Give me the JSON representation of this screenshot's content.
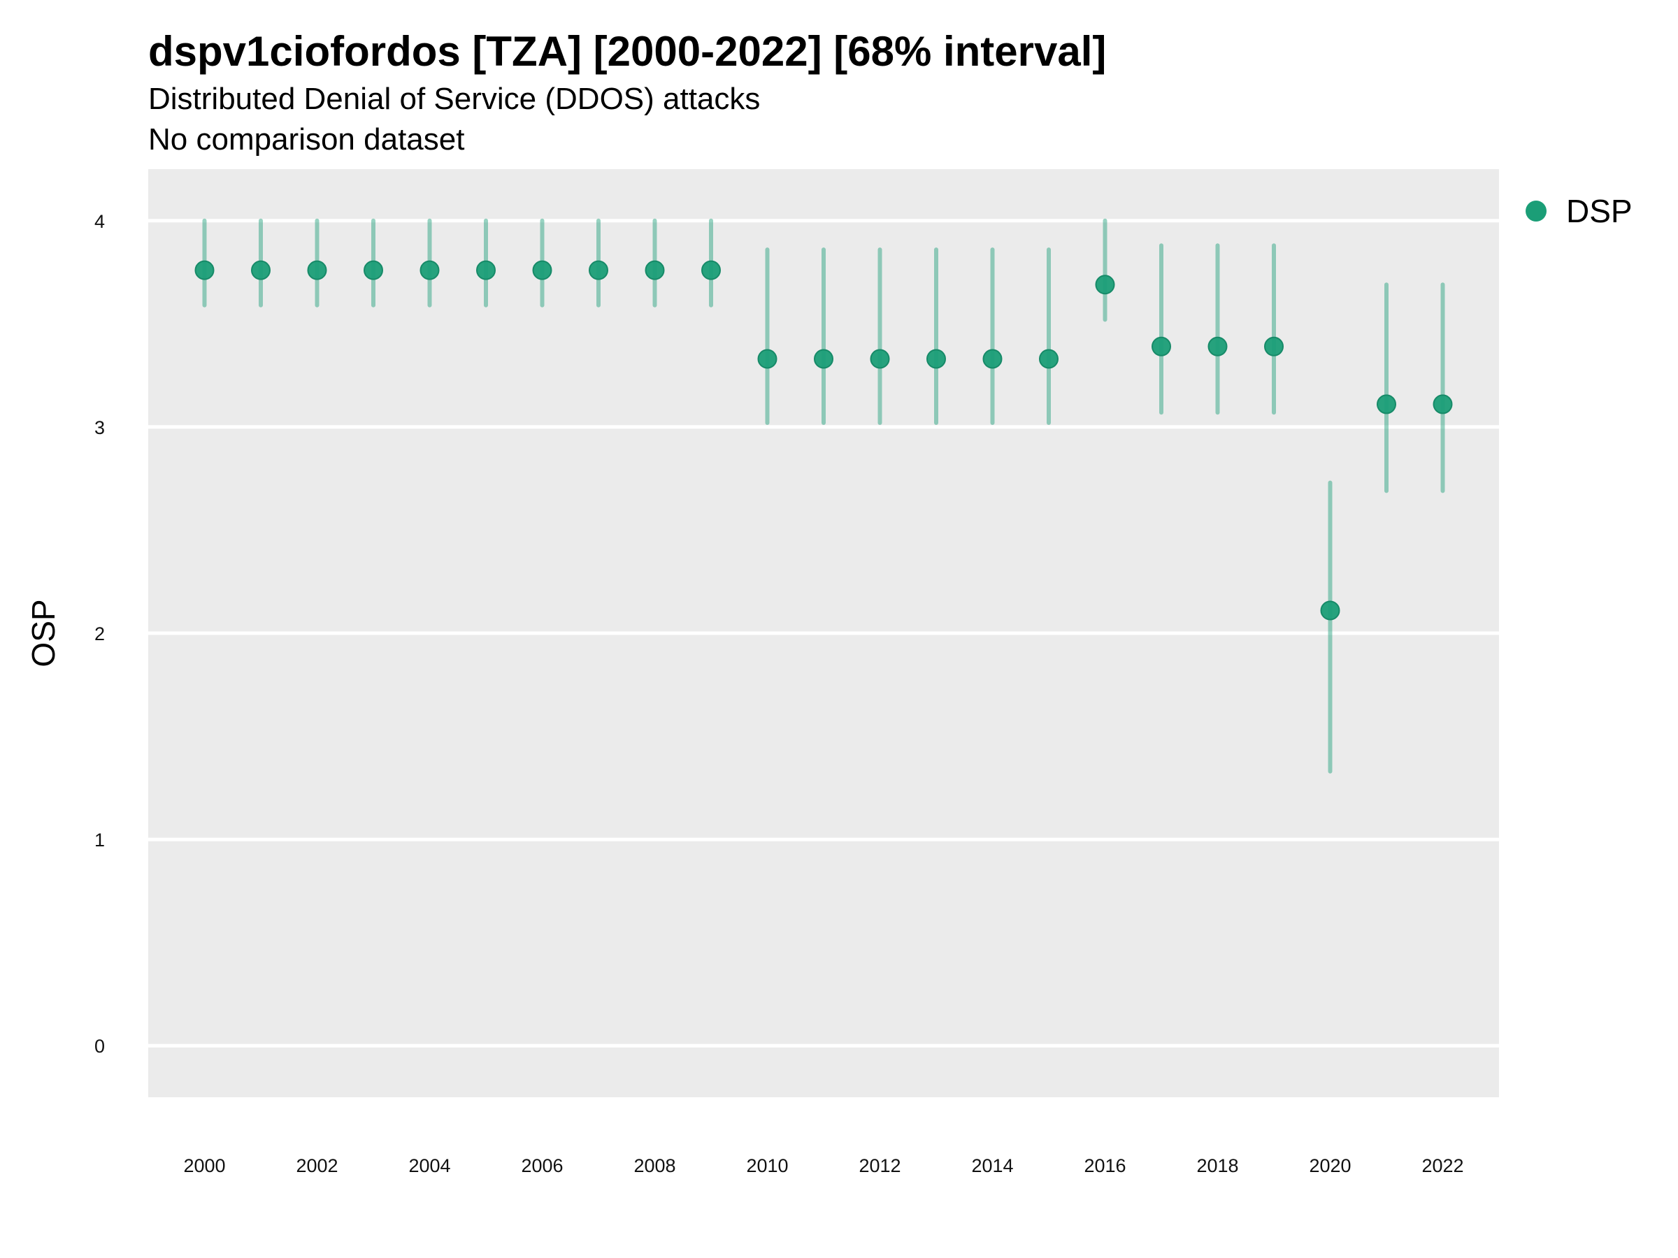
{
  "chart_data": {
    "type": "scatter",
    "title": "dspv1ciofordos [TZA] [2000-2022] [68% interval]",
    "subtitle": "Distributed Denial of Service (DDOS) attacks",
    "subtitle2": "No comparison dataset",
    "xlabel": "",
    "ylabel": "OSP",
    "xlim": [
      1999,
      2023
    ],
    "ylim": [
      -0.25,
      4.25
    ],
    "x_ticks": [
      2000,
      2002,
      2004,
      2006,
      2008,
      2010,
      2012,
      2014,
      2016,
      2018,
      2020,
      2022
    ],
    "y_ticks": [
      0,
      1,
      2,
      3,
      4
    ],
    "grid": true,
    "legend_position": "right",
    "series": [
      {
        "name": "DSP",
        "color": "#1b9e77",
        "x": [
          2000,
          2001,
          2002,
          2003,
          2004,
          2005,
          2006,
          2007,
          2008,
          2009,
          2010,
          2011,
          2012,
          2013,
          2014,
          2015,
          2016,
          2017,
          2018,
          2019,
          2020,
          2021,
          2022
        ],
        "y": [
          3.76,
          3.76,
          3.76,
          3.76,
          3.76,
          3.76,
          3.76,
          3.76,
          3.76,
          3.76,
          3.33,
          3.33,
          3.33,
          3.33,
          3.33,
          3.33,
          3.69,
          3.39,
          3.39,
          3.39,
          2.11,
          3.11,
          3.11
        ],
        "lower": [
          3.59,
          3.59,
          3.59,
          3.59,
          3.59,
          3.59,
          3.59,
          3.59,
          3.59,
          3.59,
          3.02,
          3.02,
          3.02,
          3.02,
          3.02,
          3.02,
          3.52,
          3.07,
          3.07,
          3.07,
          1.33,
          2.69,
          2.69
        ],
        "upper": [
          4.0,
          4.0,
          4.0,
          4.0,
          4.0,
          4.0,
          4.0,
          4.0,
          4.0,
          4.0,
          3.86,
          3.86,
          3.86,
          3.86,
          3.86,
          3.86,
          4.0,
          3.88,
          3.88,
          3.88,
          2.73,
          3.69,
          3.69
        ]
      }
    ]
  }
}
